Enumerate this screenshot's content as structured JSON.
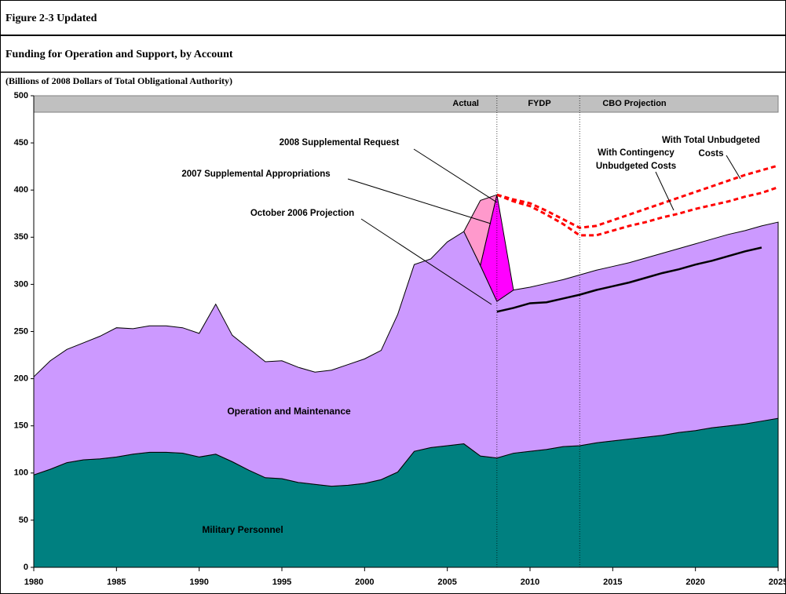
{
  "chart_data": {
    "type": "area",
    "figure_label": "Figure 2-3 Updated",
    "title": "Funding for Operation and Support, by Account",
    "subtitle": "(Billions of 2008 Dollars of Total Obligational Authority)",
    "period_labels": [
      "Actual",
      "FYDP",
      "CBO Projection"
    ],
    "dividers": [
      2008,
      2013
    ],
    "xlim": [
      1980,
      2025
    ],
    "xticks": [
      1980,
      1985,
      1990,
      1995,
      2000,
      2005,
      2010,
      2015,
      2020,
      2025
    ],
    "ylim": [
      0,
      500
    ],
    "yticks": [
      0,
      50,
      100,
      150,
      200,
      250,
      300,
      350,
      400,
      450,
      500
    ],
    "x": [
      1980,
      1981,
      1982,
      1983,
      1984,
      1985,
      1986,
      1987,
      1988,
      1989,
      1990,
      1991,
      1992,
      1993,
      1994,
      1995,
      1996,
      1997,
      1998,
      1999,
      2000,
      2001,
      2002,
      2003,
      2004,
      2005,
      2006,
      2007,
      2008,
      2009,
      2010,
      2011,
      2012,
      2013,
      2014,
      2015,
      2016,
      2017,
      2018,
      2019,
      2020,
      2021,
      2022,
      2023,
      2024,
      2025
    ],
    "series": [
      {
        "name": "Military Personnel",
        "kind": "stack",
        "color": "#008080",
        "values": [
          98,
          104,
          111,
          114,
          115,
          117,
          120,
          122,
          122,
          121,
          117,
          120,
          112,
          103,
          95,
          94,
          90,
          88,
          86,
          87,
          89,
          93,
          101,
          123,
          127,
          129,
          131,
          118,
          116,
          121,
          123,
          125,
          128,
          129,
          132,
          134,
          136,
          138,
          140,
          143,
          145,
          148,
          150,
          152,
          155,
          158
        ]
      },
      {
        "name": "Operation and Maintenance",
        "kind": "stack",
        "color": "#cc99ff",
        "values": [
          104,
          115,
          120,
          124,
          130,
          137,
          133,
          134,
          134,
          133,
          131,
          159,
          134,
          129,
          123,
          125,
          122,
          119,
          123,
          128,
          132,
          137,
          167,
          198,
          200,
          216,
          225,
          202,
          166,
          173,
          174,
          176,
          177,
          181,
          183,
          185,
          187,
          190,
          193,
          195,
          198,
          200,
          203,
          205,
          207,
          208
        ]
      },
      {
        "name": "2007 Supplemental Appropriations",
        "kind": "polygon",
        "color": "#ff99cc",
        "x": [
          2006,
          2007,
          2008,
          2007
        ],
        "values": [
          356,
          389,
          395,
          320
        ]
      },
      {
        "name": "2008 Supplemental Request",
        "kind": "polygon",
        "color": "#ff00ff",
        "x": [
          2007,
          2008,
          2009,
          2008
        ],
        "values": [
          320,
          395,
          294,
          282
        ]
      },
      {
        "name": "October 2006 Projection",
        "kind": "line",
        "color": "#000000",
        "x": [
          2008,
          2009,
          2010,
          2011,
          2012,
          2013,
          2014,
          2015,
          2016,
          2017,
          2018,
          2019,
          2020,
          2021,
          2022,
          2023,
          2024
        ],
        "values": [
          271,
          275,
          280,
          281,
          285,
          289,
          294,
          298,
          302,
          307,
          312,
          316,
          321,
          325,
          330,
          335,
          339
        ]
      },
      {
        "name": "With Contingency Unbudgeted Costs",
        "kind": "dashed",
        "color": "#ff0000",
        "x": [
          2008,
          2009,
          2010,
          2011,
          2012,
          2013,
          2014,
          2015,
          2016,
          2017,
          2018,
          2019,
          2020,
          2021,
          2022,
          2023,
          2024,
          2025
        ],
        "values": [
          395,
          388,
          383,
          374,
          364,
          352,
          352,
          357,
          362,
          366,
          371,
          375,
          380,
          384,
          388,
          393,
          397,
          403
        ]
      },
      {
        "name": "With Total Unbudgeted Costs",
        "kind": "dashed",
        "color": "#ff0000",
        "x": [
          2008,
          2009,
          2010,
          2011,
          2012,
          2013,
          2014,
          2015,
          2016,
          2017,
          2018,
          2019,
          2020,
          2021,
          2022,
          2023,
          2024,
          2025
        ],
        "values": [
          395,
          390,
          386,
          378,
          369,
          360,
          362,
          368,
          374,
          380,
          386,
          392,
          398,
          404,
          410,
          416,
          421,
          426
        ]
      }
    ]
  }
}
